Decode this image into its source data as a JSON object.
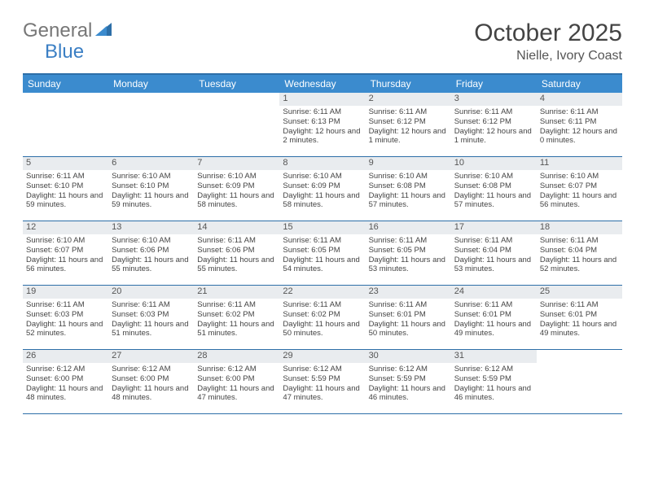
{
  "logo": {
    "part1": "General",
    "part2": "Blue"
  },
  "title": "October 2025",
  "location": "Nielle, Ivory Coast",
  "header_bg": "#3b8bce",
  "border_color": "#2d6fa8",
  "daynum_bg": "#e9ecef",
  "day_names": [
    "Sunday",
    "Monday",
    "Tuesday",
    "Wednesday",
    "Thursday",
    "Friday",
    "Saturday"
  ],
  "weeks": [
    [
      {
        "n": "",
        "l": [
          "",
          "",
          ""
        ]
      },
      {
        "n": "",
        "l": [
          "",
          "",
          ""
        ]
      },
      {
        "n": "",
        "l": [
          "",
          "",
          ""
        ]
      },
      {
        "n": "1",
        "l": [
          "Sunrise: 6:11 AM",
          "Sunset: 6:13 PM",
          "Daylight: 12 hours and 2 minutes."
        ]
      },
      {
        "n": "2",
        "l": [
          "Sunrise: 6:11 AM",
          "Sunset: 6:12 PM",
          "Daylight: 12 hours and 1 minute."
        ]
      },
      {
        "n": "3",
        "l": [
          "Sunrise: 6:11 AM",
          "Sunset: 6:12 PM",
          "Daylight: 12 hours and 1 minute."
        ]
      },
      {
        "n": "4",
        "l": [
          "Sunrise: 6:11 AM",
          "Sunset: 6:11 PM",
          "Daylight: 12 hours and 0 minutes."
        ]
      }
    ],
    [
      {
        "n": "5",
        "l": [
          "Sunrise: 6:11 AM",
          "Sunset: 6:10 PM",
          "Daylight: 11 hours and 59 minutes."
        ]
      },
      {
        "n": "6",
        "l": [
          "Sunrise: 6:10 AM",
          "Sunset: 6:10 PM",
          "Daylight: 11 hours and 59 minutes."
        ]
      },
      {
        "n": "7",
        "l": [
          "Sunrise: 6:10 AM",
          "Sunset: 6:09 PM",
          "Daylight: 11 hours and 58 minutes."
        ]
      },
      {
        "n": "8",
        "l": [
          "Sunrise: 6:10 AM",
          "Sunset: 6:09 PM",
          "Daylight: 11 hours and 58 minutes."
        ]
      },
      {
        "n": "9",
        "l": [
          "Sunrise: 6:10 AM",
          "Sunset: 6:08 PM",
          "Daylight: 11 hours and 57 minutes."
        ]
      },
      {
        "n": "10",
        "l": [
          "Sunrise: 6:10 AM",
          "Sunset: 6:08 PM",
          "Daylight: 11 hours and 57 minutes."
        ]
      },
      {
        "n": "11",
        "l": [
          "Sunrise: 6:10 AM",
          "Sunset: 6:07 PM",
          "Daylight: 11 hours and 56 minutes."
        ]
      }
    ],
    [
      {
        "n": "12",
        "l": [
          "Sunrise: 6:10 AM",
          "Sunset: 6:07 PM",
          "Daylight: 11 hours and 56 minutes."
        ]
      },
      {
        "n": "13",
        "l": [
          "Sunrise: 6:10 AM",
          "Sunset: 6:06 PM",
          "Daylight: 11 hours and 55 minutes."
        ]
      },
      {
        "n": "14",
        "l": [
          "Sunrise: 6:11 AM",
          "Sunset: 6:06 PM",
          "Daylight: 11 hours and 55 minutes."
        ]
      },
      {
        "n": "15",
        "l": [
          "Sunrise: 6:11 AM",
          "Sunset: 6:05 PM",
          "Daylight: 11 hours and 54 minutes."
        ]
      },
      {
        "n": "16",
        "l": [
          "Sunrise: 6:11 AM",
          "Sunset: 6:05 PM",
          "Daylight: 11 hours and 53 minutes."
        ]
      },
      {
        "n": "17",
        "l": [
          "Sunrise: 6:11 AM",
          "Sunset: 6:04 PM",
          "Daylight: 11 hours and 53 minutes."
        ]
      },
      {
        "n": "18",
        "l": [
          "Sunrise: 6:11 AM",
          "Sunset: 6:04 PM",
          "Daylight: 11 hours and 52 minutes."
        ]
      }
    ],
    [
      {
        "n": "19",
        "l": [
          "Sunrise: 6:11 AM",
          "Sunset: 6:03 PM",
          "Daylight: 11 hours and 52 minutes."
        ]
      },
      {
        "n": "20",
        "l": [
          "Sunrise: 6:11 AM",
          "Sunset: 6:03 PM",
          "Daylight: 11 hours and 51 minutes."
        ]
      },
      {
        "n": "21",
        "l": [
          "Sunrise: 6:11 AM",
          "Sunset: 6:02 PM",
          "Daylight: 11 hours and 51 minutes."
        ]
      },
      {
        "n": "22",
        "l": [
          "Sunrise: 6:11 AM",
          "Sunset: 6:02 PM",
          "Daylight: 11 hours and 50 minutes."
        ]
      },
      {
        "n": "23",
        "l": [
          "Sunrise: 6:11 AM",
          "Sunset: 6:01 PM",
          "Daylight: 11 hours and 50 minutes."
        ]
      },
      {
        "n": "24",
        "l": [
          "Sunrise: 6:11 AM",
          "Sunset: 6:01 PM",
          "Daylight: 11 hours and 49 minutes."
        ]
      },
      {
        "n": "25",
        "l": [
          "Sunrise: 6:11 AM",
          "Sunset: 6:01 PM",
          "Daylight: 11 hours and 49 minutes."
        ]
      }
    ],
    [
      {
        "n": "26",
        "l": [
          "Sunrise: 6:12 AM",
          "Sunset: 6:00 PM",
          "Daylight: 11 hours and 48 minutes."
        ]
      },
      {
        "n": "27",
        "l": [
          "Sunrise: 6:12 AM",
          "Sunset: 6:00 PM",
          "Daylight: 11 hours and 48 minutes."
        ]
      },
      {
        "n": "28",
        "l": [
          "Sunrise: 6:12 AM",
          "Sunset: 6:00 PM",
          "Daylight: 11 hours and 47 minutes."
        ]
      },
      {
        "n": "29",
        "l": [
          "Sunrise: 6:12 AM",
          "Sunset: 5:59 PM",
          "Daylight: 11 hours and 47 minutes."
        ]
      },
      {
        "n": "30",
        "l": [
          "Sunrise: 6:12 AM",
          "Sunset: 5:59 PM",
          "Daylight: 11 hours and 46 minutes."
        ]
      },
      {
        "n": "31",
        "l": [
          "Sunrise: 6:12 AM",
          "Sunset: 5:59 PM",
          "Daylight: 11 hours and 46 minutes."
        ]
      },
      {
        "n": "",
        "l": [
          "",
          "",
          ""
        ]
      }
    ]
  ]
}
